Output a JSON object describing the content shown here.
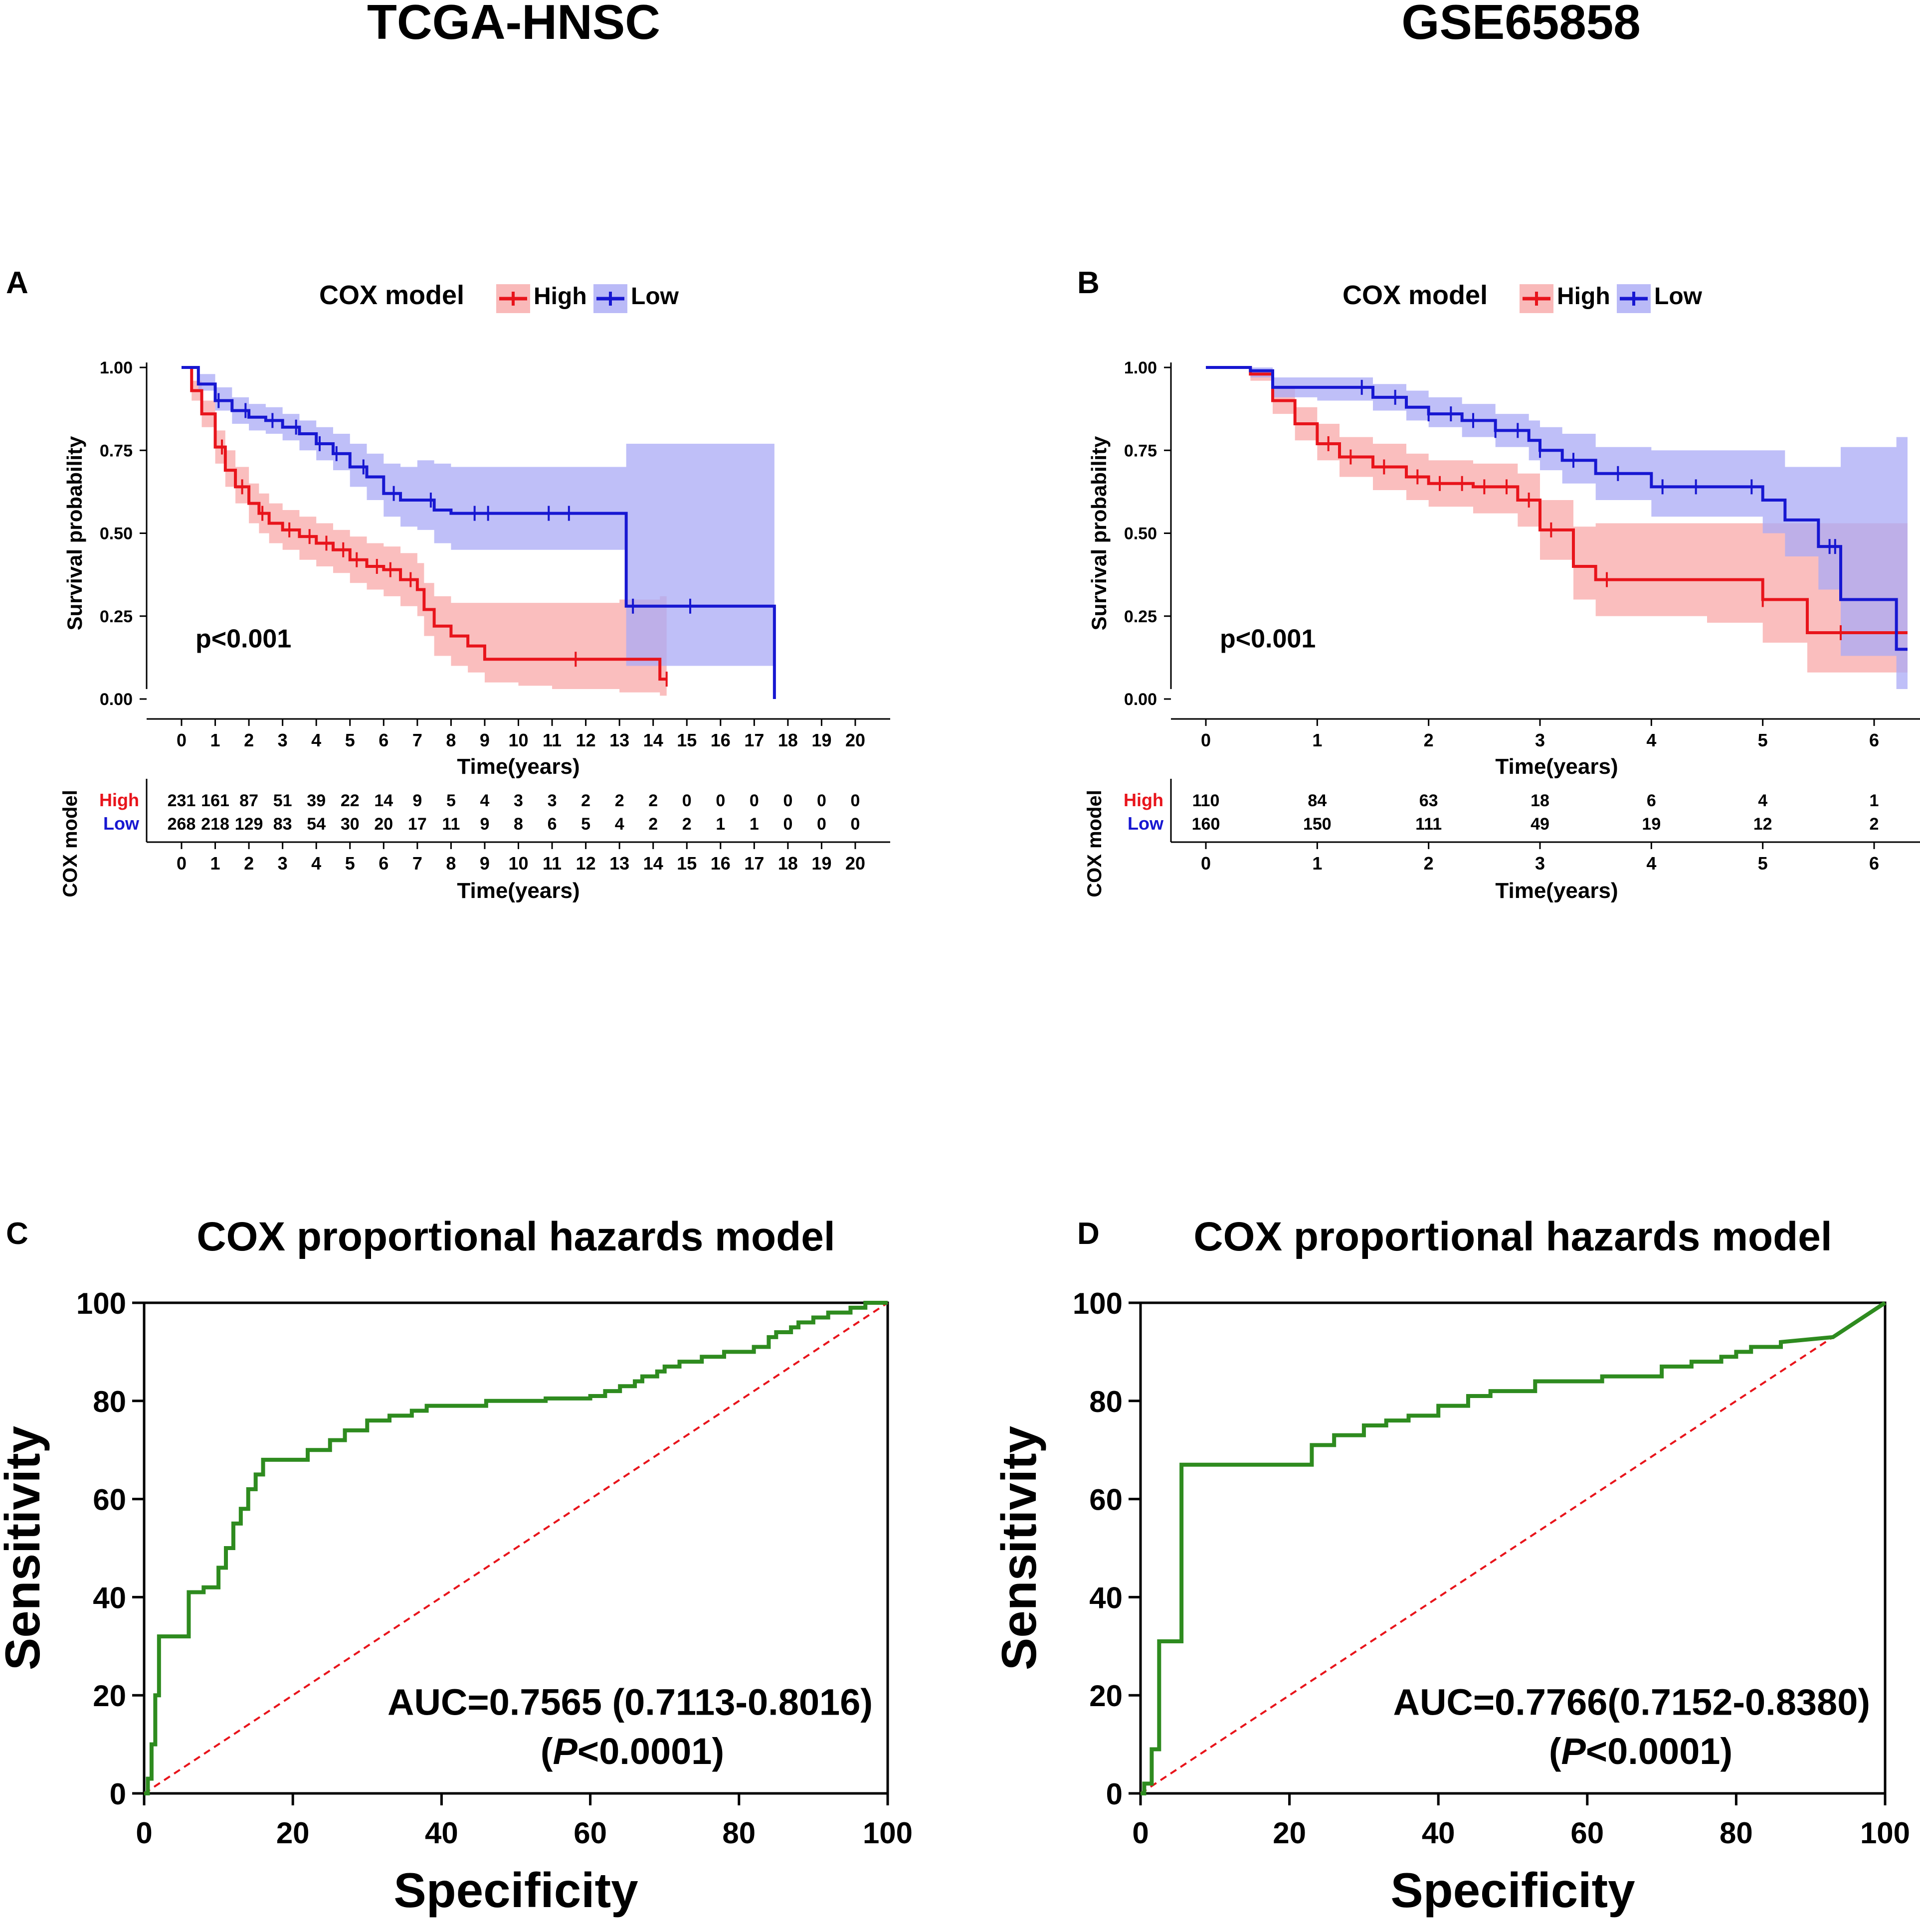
{
  "headers": {
    "left": "TCGA-HNSC",
    "right": "GSE65858"
  },
  "colors": {
    "high": "#e8141b",
    "low": "#1717d1",
    "high_band": "#f8a8a8",
    "low_band": "#a9a9f5",
    "roc_line": "#2e8b1f",
    "diagonal": "#e8141b"
  },
  "chart_data": [
    {
      "panel": "A",
      "type": "line",
      "subtype": "kaplan-meier",
      "legend_title": "COX model",
      "legend": [
        "High",
        "Low"
      ],
      "ylabel": "Survival probability",
      "xlabel": "Time(years)",
      "xlim": [
        0,
        20
      ],
      "ylim": [
        0,
        1
      ],
      "xticks": [
        "0",
        "1",
        "2",
        "3",
        "4",
        "5",
        "6",
        "7",
        "8",
        "9",
        "10",
        "11",
        "12",
        "13",
        "14",
        "15",
        "16",
        "17",
        "18",
        "19",
        "20"
      ],
      "yticks": [
        "0.00",
        "0.25",
        "0.50",
        "0.75",
        "1.00"
      ],
      "pvalue": "p<0.001",
      "series": [
        {
          "name": "High",
          "x": [
            0,
            0.3,
            0.6,
            1.0,
            1.3,
            1.6,
            2.0,
            2.3,
            2.6,
            3.0,
            3.5,
            4.0,
            4.5,
            5.0,
            5.5,
            6.0,
            6.5,
            7.0,
            7.2,
            7.5,
            8.0,
            8.5,
            9.0,
            10,
            11,
            12,
            13,
            13.5,
            14.2,
            14.4
          ],
          "y": [
            1.0,
            0.93,
            0.86,
            0.76,
            0.69,
            0.64,
            0.59,
            0.56,
            0.53,
            0.51,
            0.49,
            0.47,
            0.45,
            0.42,
            0.4,
            0.39,
            0.36,
            0.33,
            0.27,
            0.22,
            0.19,
            0.16,
            0.12,
            0.12,
            0.12,
            0.12,
            0.12,
            0.12,
            0.06,
            0.06
          ],
          "lower": [
            1.0,
            0.9,
            0.82,
            0.71,
            0.64,
            0.59,
            0.53,
            0.5,
            0.47,
            0.45,
            0.42,
            0.4,
            0.38,
            0.35,
            0.33,
            0.31,
            0.28,
            0.25,
            0.19,
            0.13,
            0.1,
            0.08,
            0.05,
            0.04,
            0.03,
            0.03,
            0.02,
            0.02,
            0.01,
            0.01
          ],
          "upper": [
            1.0,
            0.96,
            0.9,
            0.81,
            0.75,
            0.7,
            0.65,
            0.62,
            0.59,
            0.57,
            0.55,
            0.53,
            0.51,
            0.49,
            0.47,
            0.46,
            0.44,
            0.41,
            0.35,
            0.31,
            0.29,
            0.29,
            0.29,
            0.29,
            0.29,
            0.29,
            0.3,
            0.3,
            0.31,
            0.31
          ],
          "censors_x": [
            1.2,
            1.8,
            2.4,
            3.2,
            3.8,
            4.3,
            4.8,
            5.2,
            5.8,
            6.2,
            6.8,
            11.7,
            14.4
          ]
        },
        {
          "name": "Low",
          "x": [
            0,
            0.5,
            1.0,
            1.5,
            2.0,
            2.5,
            3.0,
            3.5,
            4.0,
            4.5,
            5.0,
            5.5,
            6.0,
            6.5,
            7.0,
            7.5,
            8.0,
            9,
            10,
            11,
            12,
            13,
            13.2,
            14,
            15,
            16,
            17,
            17.6
          ],
          "y": [
            1.0,
            0.95,
            0.9,
            0.87,
            0.85,
            0.84,
            0.82,
            0.8,
            0.77,
            0.74,
            0.7,
            0.67,
            0.62,
            0.6,
            0.6,
            0.57,
            0.56,
            0.56,
            0.56,
            0.56,
            0.56,
            0.56,
            0.28,
            0.28,
            0.28,
            0.28,
            0.28,
            0.0
          ],
          "lower": [
            1.0,
            0.93,
            0.87,
            0.83,
            0.81,
            0.8,
            0.78,
            0.75,
            0.72,
            0.69,
            0.64,
            0.6,
            0.55,
            0.52,
            0.51,
            0.47,
            0.45,
            0.45,
            0.45,
            0.45,
            0.45,
            0.45,
            0.1,
            0.1,
            0.1,
            0.1,
            0.1,
            0.1
          ],
          "upper": [
            1.0,
            0.98,
            0.94,
            0.91,
            0.89,
            0.88,
            0.86,
            0.84,
            0.82,
            0.8,
            0.77,
            0.74,
            0.71,
            0.7,
            0.72,
            0.71,
            0.7,
            0.7,
            0.7,
            0.7,
            0.7,
            0.7,
            0.77,
            0.77,
            0.77,
            0.77,
            0.77,
            0.77
          ],
          "censors_x": [
            1.1,
            1.9,
            2.7,
            3.4,
            4.1,
            4.6,
            5.4,
            6.3,
            7.4,
            8.7,
            9.1,
            10.9,
            11.5,
            13.4,
            15.1
          ]
        }
      ],
      "risk_table": {
        "ylabel": "COX model",
        "rows": [
          {
            "name": "High",
            "values": [
              "231",
              "161",
              "87",
              "51",
              "39",
              "22",
              "14",
              "9",
              "5",
              "4",
              "3",
              "3",
              "2",
              "2",
              "2",
              "0",
              "0",
              "0",
              "0",
              "0",
              "0"
            ]
          },
          {
            "name": "Low",
            "values": [
              "268",
              "218",
              "129",
              "83",
              "54",
              "30",
              "20",
              "17",
              "11",
              "9",
              "8",
              "6",
              "5",
              "4",
              "2",
              "2",
              "1",
              "1",
              "0",
              "0",
              "0"
            ]
          }
        ]
      }
    },
    {
      "panel": "B",
      "type": "line",
      "subtype": "kaplan-meier",
      "legend_title": "COX model",
      "legend": [
        "High",
        "Low"
      ],
      "ylabel": "Survival probability",
      "xlabel": "Time(years)",
      "xlim": [
        0,
        6.3
      ],
      "ylim": [
        0,
        1
      ],
      "xticks": [
        "0",
        "1",
        "2",
        "3",
        "4",
        "5",
        "6"
      ],
      "yticks": [
        "0.00",
        "0.25",
        "0.50",
        "0.75",
        "1.00"
      ],
      "pvalue": "p<0.001",
      "series": [
        {
          "name": "High",
          "x": [
            0,
            0.4,
            0.6,
            0.8,
            1.0,
            1.2,
            1.5,
            1.8,
            2.0,
            2.4,
            2.8,
            3.0,
            3.3,
            3.5,
            4.0,
            4.5,
            5.0,
            5.4,
            6.0,
            6.3
          ],
          "y": [
            1.0,
            0.98,
            0.9,
            0.83,
            0.77,
            0.73,
            0.7,
            0.67,
            0.65,
            0.64,
            0.6,
            0.51,
            0.4,
            0.36,
            0.36,
            0.36,
            0.3,
            0.2,
            0.2,
            0.2
          ],
          "lower": [
            1.0,
            0.96,
            0.86,
            0.78,
            0.72,
            0.67,
            0.63,
            0.6,
            0.58,
            0.56,
            0.52,
            0.42,
            0.3,
            0.25,
            0.25,
            0.23,
            0.17,
            0.08,
            0.08,
            0.08
          ],
          "upper": [
            1.0,
            0.99,
            0.94,
            0.88,
            0.83,
            0.79,
            0.77,
            0.74,
            0.72,
            0.71,
            0.68,
            0.6,
            0.52,
            0.53,
            0.53,
            0.53,
            0.53,
            0.53,
            0.53,
            0.53
          ],
          "censors_x": [
            1.1,
            1.3,
            1.6,
            1.9,
            2.1,
            2.3,
            2.5,
            2.7,
            2.9,
            3.1,
            3.6,
            5.0,
            5.7
          ]
        },
        {
          "name": "Low",
          "x": [
            0,
            0.4,
            0.6,
            1.0,
            1.3,
            1.5,
            1.8,
            2.0,
            2.3,
            2.6,
            2.9,
            3.0,
            3.2,
            3.5,
            4.0,
            4.5,
            5.0,
            5.2,
            5.5,
            5.7,
            6.2,
            6.3
          ],
          "y": [
            1.0,
            0.99,
            0.94,
            0.94,
            0.94,
            0.91,
            0.88,
            0.86,
            0.84,
            0.81,
            0.78,
            0.75,
            0.72,
            0.68,
            0.64,
            0.64,
            0.6,
            0.54,
            0.46,
            0.3,
            0.15,
            0.15
          ],
          "lower": [
            1.0,
            0.97,
            0.91,
            0.9,
            0.9,
            0.87,
            0.84,
            0.82,
            0.79,
            0.76,
            0.72,
            0.69,
            0.65,
            0.6,
            0.55,
            0.55,
            0.5,
            0.43,
            0.33,
            0.13,
            0.03,
            0.03
          ],
          "upper": [
            1.0,
            1.0,
            0.97,
            0.97,
            0.97,
            0.95,
            0.93,
            0.91,
            0.89,
            0.86,
            0.84,
            0.82,
            0.8,
            0.76,
            0.75,
            0.75,
            0.75,
            0.7,
            0.7,
            0.76,
            0.79,
            0.79
          ],
          "censors_x": [
            1.4,
            1.7,
            2.0,
            2.2,
            2.4,
            2.6,
            2.8,
            3.0,
            3.3,
            3.7,
            4.1,
            4.4,
            4.9,
            5.6,
            5.65
          ]
        }
      ],
      "risk_table": {
        "ylabel": "COX model",
        "rows": [
          {
            "name": "High",
            "values": [
              "110",
              "84",
              "63",
              "18",
              "6",
              "4",
              "1"
            ]
          },
          {
            "name": "Low",
            "values": [
              "160",
              "150",
              "111",
              "49",
              "19",
              "12",
              "2"
            ]
          }
        ]
      }
    },
    {
      "panel": "C",
      "type": "line",
      "subtype": "roc",
      "title": "COX proportional hazards model",
      "xlabel": "Specificity",
      "ylabel": "Sensitivity",
      "xlim": [
        0,
        100
      ],
      "ylim": [
        0,
        100
      ],
      "xticks": [
        "0",
        "20",
        "40",
        "60",
        "80",
        "100"
      ],
      "yticks": [
        "0",
        "20",
        "40",
        "60",
        "80",
        "100"
      ],
      "auc_text": "AUC=0.7565 (0.7113-0.8016)",
      "p_prefix": "(",
      "p_letter": "P",
      "p_suffix": "<0.0001)",
      "x": [
        0,
        0.5,
        0.5,
        1,
        1,
        1.5,
        1.5,
        2,
        2,
        6,
        6,
        8,
        8,
        10,
        10,
        11,
        11,
        12,
        12,
        13,
        13,
        14,
        14,
        15,
        15,
        16,
        16,
        22,
        22,
        25,
        25,
        27,
        27,
        30,
        30,
        33,
        33,
        36,
        36,
        38,
        38,
        46,
        46,
        54,
        54,
        60,
        60,
        62,
        62,
        64,
        64,
        66,
        66,
        67,
        67,
        69,
        69,
        70,
        70,
        72,
        72,
        75,
        75,
        78,
        78,
        82,
        82,
        84,
        84,
        85,
        85,
        87,
        87,
        88,
        88,
        90,
        90,
        92,
        92,
        95,
        95,
        97,
        97,
        100
      ],
      "y": [
        0,
        0,
        3,
        3,
        10,
        10,
        20,
        20,
        32,
        32,
        41,
        41,
        42,
        42,
        46,
        46,
        50,
        50,
        55,
        55,
        58,
        58,
        62,
        62,
        65,
        65,
        68,
        68,
        70,
        70,
        72,
        72,
        74,
        74,
        76,
        76,
        77,
        77,
        78,
        78,
        79,
        79,
        80,
        80,
        80.5,
        80.5,
        81,
        81,
        82,
        82,
        83,
        83,
        84,
        84,
        85,
        85,
        86,
        86,
        87,
        87,
        88,
        88,
        89,
        89,
        90,
        90,
        91,
        91,
        93,
        93,
        94,
        94,
        95,
        95,
        96,
        96,
        97,
        97,
        98,
        98,
        99,
        99,
        100,
        100
      ]
    },
    {
      "panel": "D",
      "type": "line",
      "subtype": "roc",
      "title": "COX proportional hazards model",
      "xlabel": "Specificity",
      "ylabel": "Sensitivity",
      "xlim": [
        0,
        100
      ],
      "ylim": [
        0,
        100
      ],
      "xticks": [
        "0",
        "20",
        "40",
        "60",
        "80",
        "100"
      ],
      "yticks": [
        "0",
        "20",
        "40",
        "60",
        "80",
        "100"
      ],
      "auc_text": "AUC=0.7766(0.7152-0.8380)",
      "p_prefix": "(",
      "p_letter": "P",
      "p_suffix": "<0.0001)",
      "x": [
        0,
        0.5,
        0.5,
        1.5,
        1.5,
        2.5,
        2.5,
        5.5,
        5.5,
        23,
        23,
        26,
        26,
        30,
        30,
        33,
        33,
        36,
        36,
        40,
        40,
        44,
        44,
        47,
        47,
        53,
        53,
        62,
        62,
        70,
        70,
        74,
        74,
        78,
        78,
        80,
        80,
        82,
        82,
        86,
        86,
        93,
        100
      ],
      "y": [
        0,
        0,
        2,
        2,
        9,
        9,
        31,
        31,
        67,
        67,
        71,
        71,
        73,
        73,
        75,
        75,
        76,
        76,
        77,
        77,
        79,
        79,
        81,
        81,
        82,
        82,
        84,
        84,
        85,
        85,
        87,
        87,
        88,
        88,
        89,
        89,
        90,
        90,
        91,
        91,
        92,
        93,
        100
      ]
    }
  ]
}
